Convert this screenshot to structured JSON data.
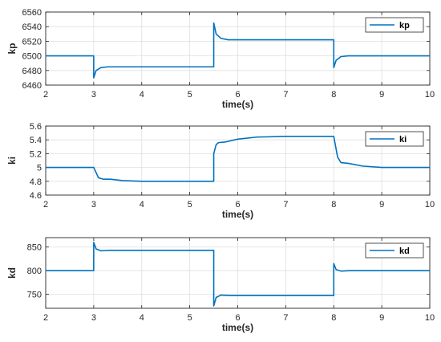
{
  "chart_data": [
    {
      "type": "line",
      "xlabel": "time(s)",
      "ylabel": "kp",
      "xlim": [
        2,
        10
      ],
      "ylim": [
        6460,
        6560
      ],
      "xticks": [
        2,
        3,
        4,
        5,
        6,
        7,
        8,
        9,
        10
      ],
      "yticks": [
        6460,
        6480,
        6500,
        6520,
        6540,
        6560
      ],
      "grid": true,
      "legend_position": "top-right",
      "color": "#0072BD",
      "series": [
        {
          "name": "kp",
          "x": [
            2,
            3,
            3.0,
            3.05,
            3.15,
            3.3,
            5.5,
            5.5,
            5.55,
            5.65,
            5.8,
            8,
            8.0,
            8.05,
            8.15,
            8.3,
            10
          ],
          "y": [
            6500,
            6500,
            6470,
            6480,
            6484,
            6485,
            6485,
            6545,
            6530,
            6524,
            6522,
            6522,
            6484,
            6494,
            6499,
            6500,
            6500
          ]
        }
      ]
    },
    {
      "type": "line",
      "xlabel": "time(s)",
      "ylabel": "ki",
      "xlim": [
        2,
        10
      ],
      "ylim": [
        4.6,
        5.6
      ],
      "xticks": [
        2,
        3,
        4,
        5,
        6,
        7,
        8,
        9,
        10
      ],
      "yticks": [
        4.6,
        4.8,
        5,
        5.2,
        5.4,
        5.6
      ],
      "ytick_labels": [
        "4.6",
        "4.8",
        "5",
        "5.2",
        "5.4",
        "5.6"
      ],
      "grid": true,
      "legend_position": "top-right",
      "color": "#0072BD",
      "series": [
        {
          "name": "ki",
          "x": [
            2,
            3,
            3.1,
            3.2,
            3.35,
            3.6,
            4.0,
            5.5,
            5.5,
            5.55,
            5.6,
            5.75,
            6.0,
            6.4,
            7.0,
            8,
            8.08,
            8.15,
            8.3,
            8.6,
            9.0,
            10
          ],
          "y": [
            5.0,
            5.0,
            4.85,
            4.83,
            4.83,
            4.81,
            4.8,
            4.8,
            5.2,
            5.33,
            5.36,
            5.37,
            5.41,
            5.44,
            5.45,
            5.45,
            5.15,
            5.07,
            5.06,
            5.02,
            5.0,
            5.0
          ]
        }
      ]
    },
    {
      "type": "line",
      "xlabel": "time(s)",
      "ylabel": "kd",
      "xlim": [
        2,
        10
      ],
      "ylim": [
        720,
        870
      ],
      "xticks": [
        2,
        3,
        4,
        5,
        6,
        7,
        8,
        9,
        10
      ],
      "yticks": [
        750,
        800,
        850
      ],
      "grid": true,
      "legend_position": "top-right",
      "color": "#0072BD",
      "series": [
        {
          "name": "kd",
          "x": [
            2,
            3,
            3.0,
            3.05,
            3.15,
            3.35,
            5.5,
            5.5,
            5.55,
            5.65,
            5.85,
            8,
            8.0,
            8.05,
            8.15,
            8.35,
            10
          ],
          "y": [
            800,
            800,
            860,
            846,
            842,
            843,
            843,
            725,
            743,
            748,
            747,
            747,
            815,
            802,
            799,
            800,
            800
          ]
        }
      ]
    }
  ]
}
